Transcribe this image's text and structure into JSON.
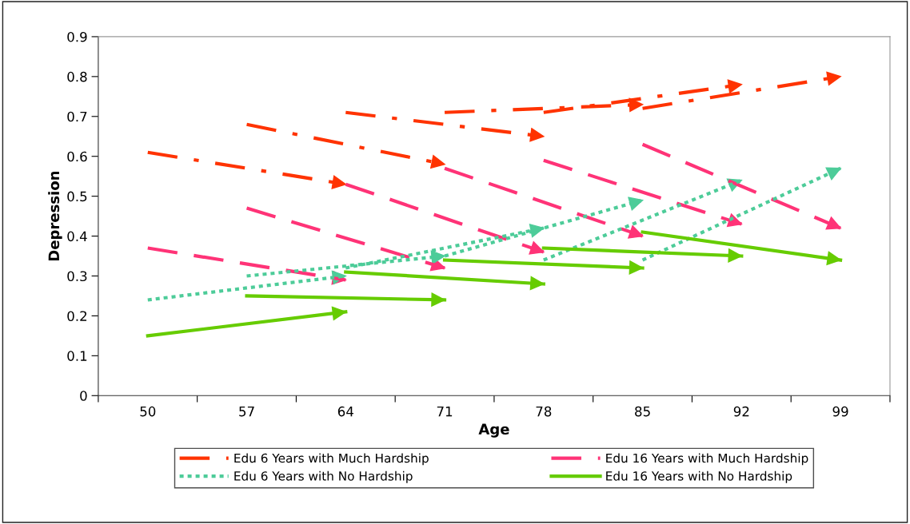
{
  "chart_data": {
    "type": "line",
    "xlabel": "Age",
    "ylabel": "Depression",
    "xlim": [
      46.5,
      102.5
    ],
    "ylim": [
      0,
      0.9
    ],
    "xticks": [
      {
        "value": 46.5,
        "label": null
      },
      50,
      {
        "value": 53.5,
        "label": null
      },
      57,
      {
        "value": 60.5,
        "label": null
      },
      64,
      {
        "value": 67.5,
        "label": null
      },
      71,
      {
        "value": 74.5,
        "label": null
      },
      78,
      {
        "value": 81.5,
        "label": null
      },
      85,
      {
        "value": 88.5,
        "label": null
      },
      92,
      {
        "value": 95.5,
        "label": null
      },
      99,
      {
        "value": 102.5,
        "label": null
      }
    ],
    "yticks": [
      0,
      0.1,
      0.2,
      0.3,
      0.4,
      0.5,
      0.6,
      0.7,
      0.8,
      0.9
    ],
    "grid": false,
    "legend": "bottom",
    "marker": "none",
    "series": [
      {
        "name": "Edu 6 Years with Much Hardship",
        "color": "#ff3300",
        "line_style": "dashdot",
        "x": [
          50,
          64,
          null,
          57,
          71,
          null,
          64,
          78,
          null,
          71,
          85,
          null,
          78,
          92,
          null,
          85,
          99
        ],
        "values": [
          0.61,
          0.53,
          null,
          0.68,
          0.58,
          null,
          0.71,
          0.65,
          null,
          0.71,
          0.73,
          null,
          0.71,
          0.78,
          null,
          0.72,
          0.8
        ]
      },
      {
        "name": "Edu 16 Years with Much Hardship",
        "color": "#ff3377",
        "line_style": "dashed",
        "x": [
          50,
          64,
          null,
          57,
          71,
          null,
          64,
          78,
          null,
          71,
          85,
          null,
          78,
          92,
          null,
          85,
          99
        ],
        "values": [
          0.37,
          0.29,
          null,
          0.47,
          0.32,
          null,
          0.53,
          0.36,
          null,
          0.57,
          0.4,
          null,
          0.59,
          0.43,
          null,
          0.63,
          0.42
        ]
      },
      {
        "name": "Edu 6 Years with No Hardship",
        "color": "#4dcc99",
        "line_style": "dotted",
        "x": [
          50,
          64,
          null,
          57,
          71,
          null,
          64,
          78,
          null,
          71,
          85,
          null,
          78,
          92,
          null,
          85,
          99
        ],
        "values": [
          0.24,
          0.3,
          null,
          0.3,
          0.35,
          null,
          0.32,
          0.42,
          null,
          0.35,
          0.49,
          null,
          0.34,
          0.54,
          null,
          0.34,
          0.57
        ]
      },
      {
        "name": "Edu 16 Years with No Hardship",
        "color": "#66cc00",
        "line_style": "solid",
        "x": [
          50,
          64,
          null,
          57,
          71,
          null,
          64,
          78,
          null,
          71,
          85,
          null,
          78,
          92,
          null,
          85,
          99
        ],
        "values": [
          0.15,
          0.21,
          null,
          0.25,
          0.24,
          null,
          0.31,
          0.28,
          null,
          0.34,
          0.32,
          null,
          0.37,
          0.35,
          null,
          0.41,
          0.34
        ]
      }
    ]
  }
}
